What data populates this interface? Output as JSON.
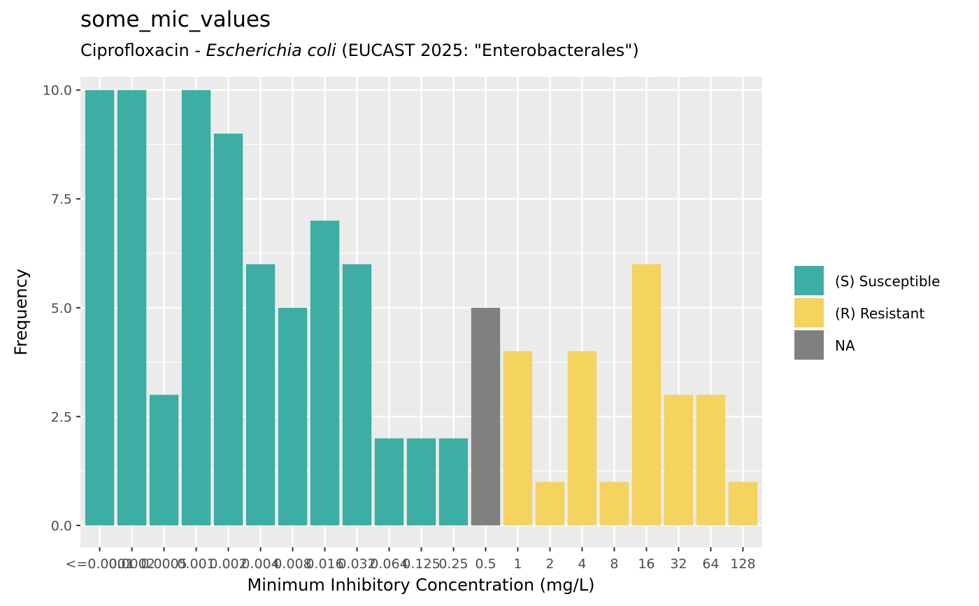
{
  "title": "some_mic_values",
  "subtitle": {
    "prefix": "Ciprofloxacin - ",
    "species": "Escherichia coli",
    "suffix": " (EUCAST 2025: \"Enterobacterales\")"
  },
  "colors": {
    "panel_bg": "#ebebeb",
    "grid": "#ffffff",
    "S": "#3caea3",
    "R": "#f4d35e",
    "NA": "#808080"
  },
  "chart_data": {
    "type": "bar",
    "xlabel": "Minimum Inhibitory Concentration (mg/L)",
    "ylabel": "Frequency",
    "ylim": [
      0,
      10.3
    ],
    "y_ticks": [
      "0.0",
      "2.5",
      "5.0",
      "7.5",
      "10.0"
    ],
    "grid": true,
    "legend_position": "right",
    "legend": [
      {
        "key": "S",
        "label": "(S) Susceptible"
      },
      {
        "key": "R",
        "label": "(R) Resistant"
      },
      {
        "key": "NA",
        "label": "NA"
      }
    ],
    "categories": [
      "<=0.0001",
      "0.0002",
      "0.0005",
      "0.001",
      "0.002",
      "0.004",
      "0.008",
      "0.016",
      "0.032",
      "0.064",
      "0.125",
      "0.25",
      "0.5",
      "1",
      "2",
      "4",
      "8",
      "16",
      "32",
      "64",
      "128"
    ],
    "values": [
      10,
      10,
      3,
      10,
      9,
      6,
      5,
      7,
      6,
      2,
      2,
      2,
      5,
      4,
      1,
      4,
      1,
      6,
      3,
      3,
      1
    ],
    "interpretation": [
      "S",
      "S",
      "S",
      "S",
      "S",
      "S",
      "S",
      "S",
      "S",
      "S",
      "S",
      "S",
      "NA",
      "R",
      "R",
      "R",
      "R",
      "R",
      "R",
      "R",
      "R"
    ]
  }
}
